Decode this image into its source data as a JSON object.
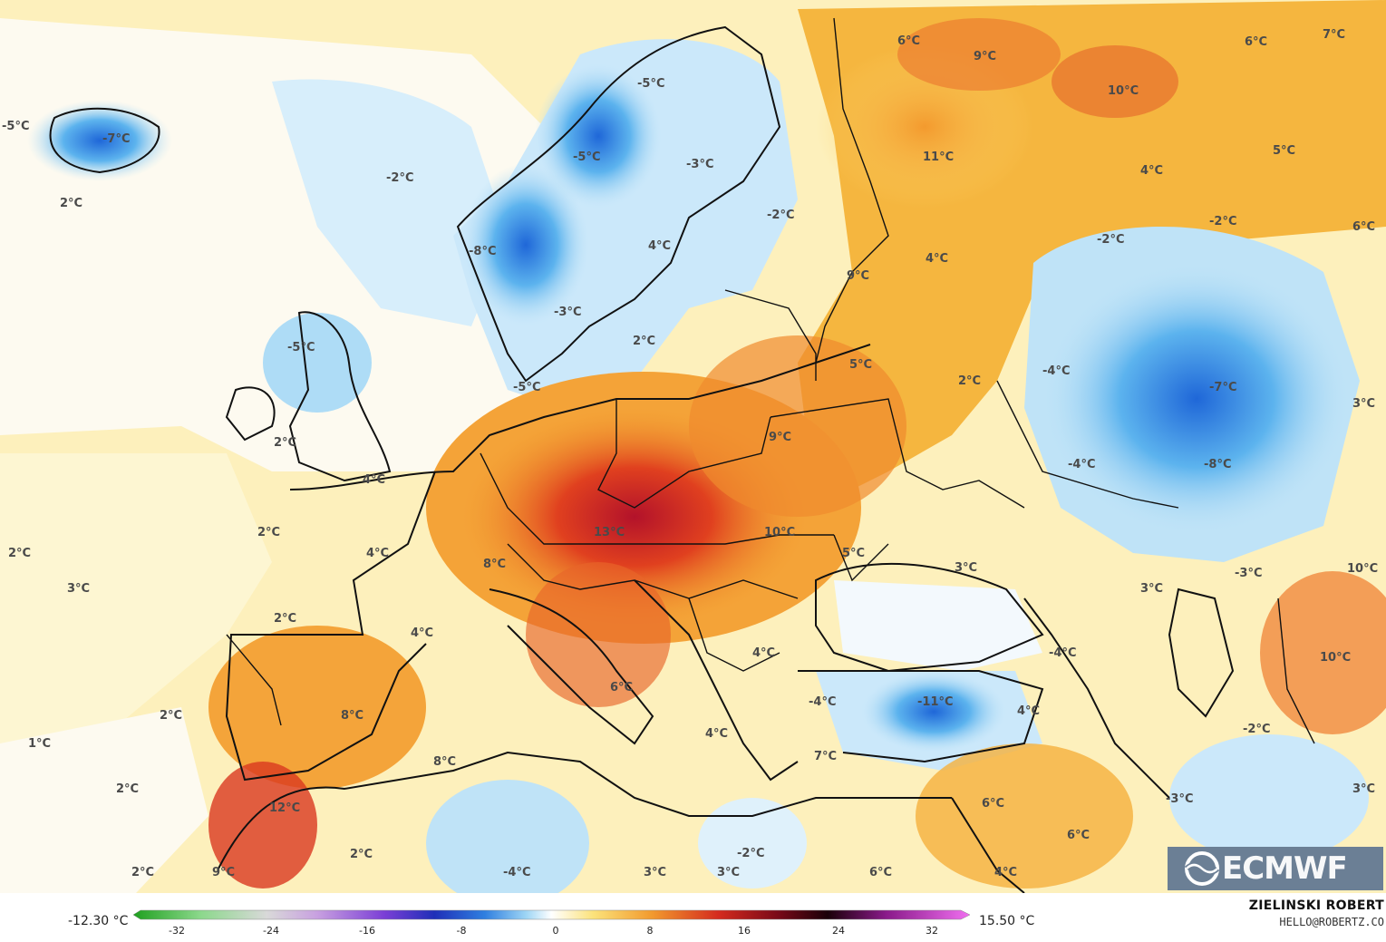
{
  "legend": {
    "min_label": "-12.30 °C",
    "max_label": "15.50 °C",
    "ticks": [
      "-32",
      "-24",
      "-16",
      "-8",
      "0",
      "8",
      "16",
      "24",
      "32"
    ]
  },
  "credit": {
    "name": "ZIELINSKI ROBERT",
    "email": "HELLO@ROBERTZ.CO"
  },
  "logo": {
    "text": "ECMWF"
  },
  "labels": [
    {
      "text": "-5°C"
    },
    {
      "text": "-7°C"
    },
    {
      "text": "2°C"
    },
    {
      "text": "-2°C"
    },
    {
      "text": "-5°C"
    },
    {
      "text": "-5°C"
    },
    {
      "text": "-3°C"
    },
    {
      "text": "-8°C"
    },
    {
      "text": "4°C"
    },
    {
      "text": "-2°C"
    },
    {
      "text": "-3°C"
    },
    {
      "text": "2°C"
    },
    {
      "text": "-5°C"
    },
    {
      "text": "-5°C"
    },
    {
      "text": "2°C"
    },
    {
      "text": "4°C"
    },
    {
      "text": "2°C"
    },
    {
      "text": "2°C"
    },
    {
      "text": "4°C"
    },
    {
      "text": "3°C"
    },
    {
      "text": "13°C"
    },
    {
      "text": "8°C"
    },
    {
      "text": "2°C"
    },
    {
      "text": "4°C"
    },
    {
      "text": "6°C"
    },
    {
      "text": "9°C"
    },
    {
      "text": "11°C"
    },
    {
      "text": "10°C"
    },
    {
      "text": "6°C"
    },
    {
      "text": "7°C"
    },
    {
      "text": "5°C"
    },
    {
      "text": "4°C"
    },
    {
      "text": "-2°C"
    },
    {
      "text": "-2°C"
    },
    {
      "text": "6°C"
    },
    {
      "text": "4°C"
    },
    {
      "text": "9°C"
    },
    {
      "text": "5°C"
    },
    {
      "text": "2°C"
    },
    {
      "text": "-4°C"
    },
    {
      "text": "-7°C"
    },
    {
      "text": "3°C"
    },
    {
      "text": "9°C"
    },
    {
      "text": "-4°C"
    },
    {
      "text": "-8°C"
    },
    {
      "text": "10°C"
    },
    {
      "text": "5°C"
    },
    {
      "text": "3°C"
    },
    {
      "text": "3°C"
    },
    {
      "text": "-3°C"
    },
    {
      "text": "10°C"
    },
    {
      "text": "4°C"
    },
    {
      "text": "-4°C"
    },
    {
      "text": "10°C"
    },
    {
      "text": "6°C"
    },
    {
      "text": "-4°C"
    },
    {
      "text": "-11°C"
    },
    {
      "text": "4°C"
    },
    {
      "text": "-2°C"
    },
    {
      "text": "2°C"
    },
    {
      "text": "8°C"
    },
    {
      "text": "1°C"
    },
    {
      "text": "4°C"
    },
    {
      "text": "7°C"
    },
    {
      "text": "8°C"
    },
    {
      "text": "2°C"
    },
    {
      "text": "12°C"
    },
    {
      "text": "2°C"
    },
    {
      "text": "2°C"
    },
    {
      "text": "9°C"
    },
    {
      "text": "-4°C"
    },
    {
      "text": "3°C"
    },
    {
      "text": "3°C"
    },
    {
      "text": "-2°C"
    },
    {
      "text": "6°C"
    },
    {
      "text": "4°C"
    },
    {
      "text": "6°C"
    },
    {
      "text": "6°C"
    },
    {
      "text": "-3°C"
    },
    {
      "text": "3°C"
    }
  ]
}
